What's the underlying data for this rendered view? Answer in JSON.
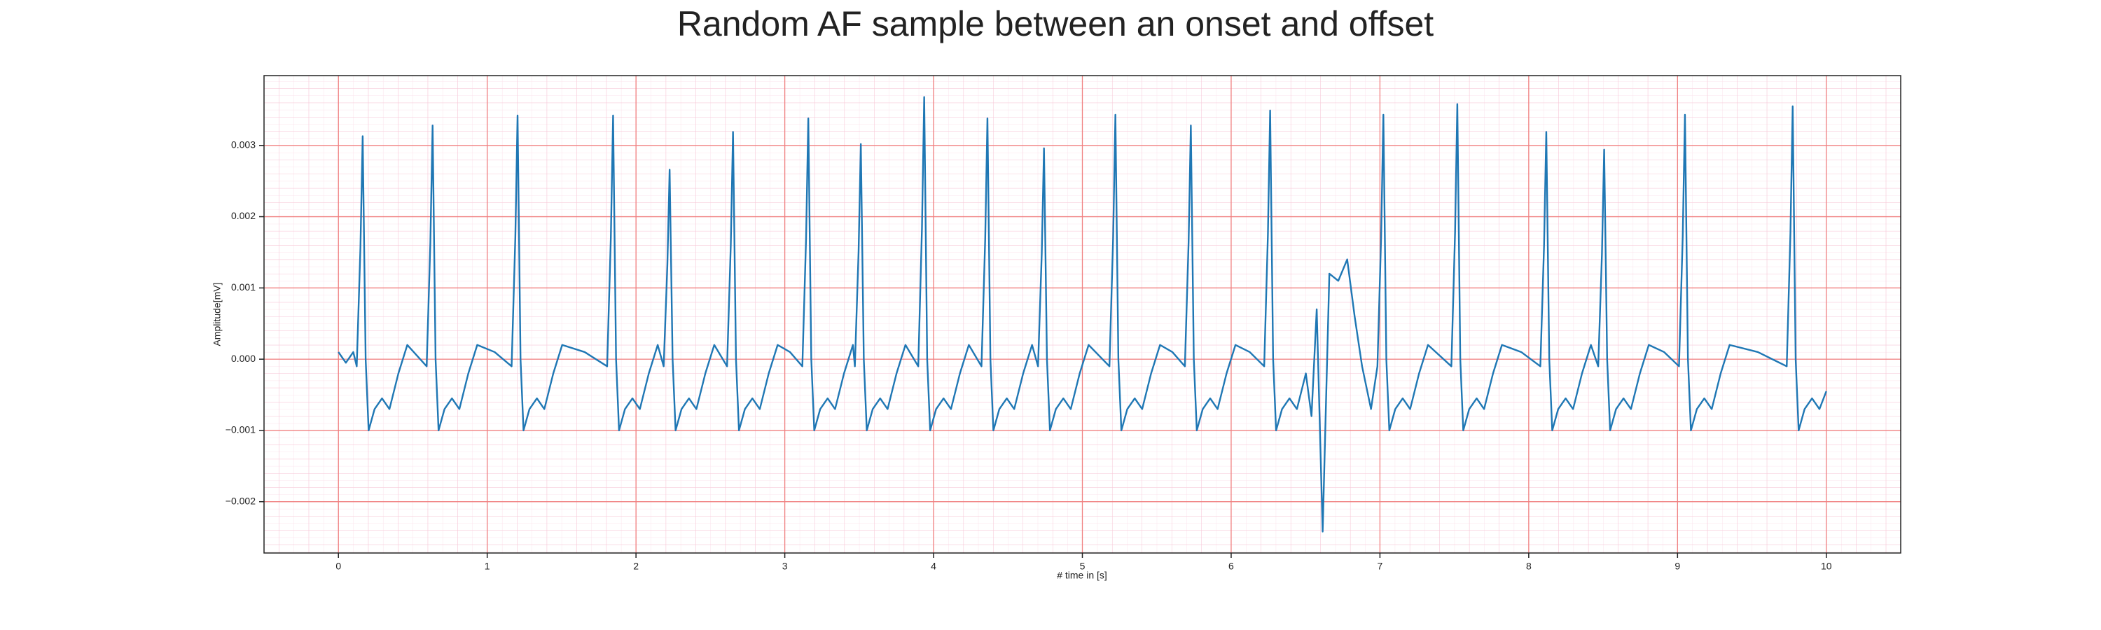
{
  "chart_data": {
    "type": "line",
    "title": "Random AF sample between an onset and offset",
    "xlabel": "# time in [s]",
    "ylabel": "Amplitude[mV]",
    "xlim": [
      -0.5,
      10.5
    ],
    "ylim": [
      -0.00272,
      0.00398
    ],
    "xticks": [
      0,
      1,
      2,
      3,
      4,
      5,
      6,
      7,
      8,
      9,
      10
    ],
    "yticks": [
      {
        "value": -0.002,
        "label": "−0.002"
      },
      {
        "value": -0.001,
        "label": "−0.001"
      },
      {
        "value": 0,
        "label": "0.000"
      },
      {
        "value": 0.001,
        "label": "0.001"
      },
      {
        "value": 0.002,
        "label": "0.002"
      },
      {
        "value": 0.003,
        "label": "0.003"
      }
    ],
    "grid": true,
    "minor_grid": true,
    "x": [
      0,
      0.05,
      0.1,
      0.123,
      0.148,
      0.163,
      0.183,
      0.203,
      0.243,
      0.293,
      0.343,
      0.403,
      0.463,
      0.593,
      0.618,
      0.633,
      0.653,
      0.673,
      0.713,
      0.763,
      0.813,
      0.873,
      0.933,
      1.05,
      1.164,
      1.189,
      1.204,
      1.224,
      1.244,
      1.284,
      1.334,
      1.384,
      1.444,
      1.504,
      1.655,
      1.806,
      1.831,
      1.846,
      1.866,
      1.886,
      1.926,
      1.976,
      2.026,
      2.086,
      2.146,
      2.186,
      2.211,
      2.226,
      2.246,
      2.266,
      2.306,
      2.356,
      2.406,
      2.466,
      2.526,
      2.612,
      2.637,
      2.652,
      2.672,
      2.692,
      2.732,
      2.782,
      2.832,
      2.892,
      2.952,
      3.035,
      3.118,
      3.143,
      3.158,
      3.178,
      3.198,
      3.238,
      3.288,
      3.338,
      3.398,
      3.458,
      3.471,
      3.496,
      3.511,
      3.531,
      3.551,
      3.591,
      3.641,
      3.691,
      3.751,
      3.811,
      3.897,
      3.922,
      3.937,
      3.957,
      3.977,
      4.017,
      4.067,
      4.117,
      4.177,
      4.237,
      4.322,
      4.347,
      4.362,
      4.382,
      4.402,
      4.442,
      4.492,
      4.542,
      4.602,
      4.662,
      4.702,
      4.727,
      4.742,
      4.762,
      4.782,
      4.822,
      4.872,
      4.922,
      4.982,
      5.042,
      5.182,
      5.207,
      5.222,
      5.242,
      5.262,
      5.302,
      5.352,
      5.402,
      5.462,
      5.522,
      5.605,
      5.689,
      5.714,
      5.729,
      5.749,
      5.769,
      5.809,
      5.859,
      5.909,
      5.969,
      6.029,
      6.125,
      6.222,
      6.247,
      6.262,
      6.282,
      6.302,
      6.342,
      6.392,
      6.442,
      6.502,
      6.54,
      6.575,
      6.615,
      6.66,
      6.72,
      6.78,
      6.83,
      6.88,
      6.94,
      6.983,
      7.008,
      7.023,
      7.043,
      7.063,
      7.103,
      7.153,
      7.203,
      7.263,
      7.323,
      7.48,
      7.505,
      7.52,
      7.54,
      7.56,
      7.6,
      7.65,
      7.7,
      7.76,
      7.82,
      7.95,
      8.078,
      8.103,
      8.118,
      8.138,
      8.158,
      8.198,
      8.248,
      8.298,
      8.358,
      8.418,
      8.467,
      8.492,
      8.507,
      8.527,
      8.547,
      8.587,
      8.637,
      8.687,
      8.747,
      8.807,
      8.91,
      9.01,
      9.035,
      9.05,
      9.07,
      9.09,
      9.13,
      9.18,
      9.23,
      9.29,
      9.35,
      9.54,
      9.734,
      9.759,
      9.774,
      9.794,
      9.814,
      9.854,
      9.904,
      9.954,
      10.0
    ],
    "series": [
      {
        "color": "#1f77b4",
        "values": [
          0.0001,
          -5e-05,
          0.0001,
          -0.0001,
          0.00157,
          0.00313,
          0,
          -0.001,
          -0.0007,
          -0.00055,
          -0.0007,
          -0.0002,
          0.0002,
          -0.0001,
          0.00164,
          0.00328,
          0,
          -0.001,
          -0.0007,
          -0.00055,
          -0.0007,
          -0.0002,
          0.0002,
          0.0001,
          -0.0001,
          0.00171,
          0.00342,
          0,
          -0.001,
          -0.0007,
          -0.00055,
          -0.0007,
          -0.0002,
          0.0002,
          0.0001,
          -0.0001,
          0.00171,
          0.00342,
          0,
          -0.001,
          -0.0007,
          -0.00055,
          -0.0007,
          -0.0002,
          0.0002,
          -0.0001,
          0.00133,
          0.00266,
          0,
          -0.001,
          -0.0007,
          -0.00055,
          -0.0007,
          -0.0002,
          0.0002,
          -0.0001,
          0.0016,
          0.00319,
          0,
          -0.001,
          -0.0007,
          -0.00055,
          -0.0007,
          -0.0002,
          0.0002,
          0.0001,
          -0.0001,
          0.00169,
          0.00338,
          0,
          -0.001,
          -0.0007,
          -0.00055,
          -0.0007,
          -0.0002,
          0.0002,
          -0.0001,
          0.00151,
          0.00302,
          0,
          -0.001,
          -0.0007,
          -0.00055,
          -0.0007,
          -0.0002,
          0.0002,
          -0.0001,
          0.00184,
          0.00368,
          0,
          -0.001,
          -0.0007,
          -0.00055,
          -0.0007,
          -0.0002,
          0.0002,
          -0.0001,
          0.00169,
          0.00338,
          0,
          -0.001,
          -0.0007,
          -0.00055,
          -0.0007,
          -0.0002,
          0.0002,
          -0.0001,
          0.00148,
          0.00296,
          0,
          -0.001,
          -0.0007,
          -0.00055,
          -0.0007,
          -0.0002,
          0.0002,
          -0.0001,
          0.00172,
          0.00343,
          0,
          -0.001,
          -0.0007,
          -0.00055,
          -0.0007,
          -0.0002,
          0.0002,
          0.0001,
          -0.0001,
          0.00164,
          0.00328,
          0,
          -0.001,
          -0.0007,
          -0.00055,
          -0.0007,
          -0.0002,
          0.0002,
          0.0001,
          -0.0001,
          0.00175,
          0.00349,
          0,
          -0.001,
          -0.0007,
          -0.00055,
          -0.0007,
          -0.0002,
          -0.0008,
          0.0007,
          -0.00242,
          0.0012,
          0.0011,
          0.0014,
          0.0006,
          -0.0001,
          -0.0007,
          -0.0001,
          0.00172,
          0.00343,
          0,
          -0.001,
          -0.0007,
          -0.00055,
          -0.0007,
          -0.0002,
          0.0002,
          -0.0001,
          0.00179,
          0.00358,
          0,
          -0.001,
          -0.0007,
          -0.00055,
          -0.0007,
          -0.0002,
          0.0002,
          0.0001,
          -0.0001,
          0.0016,
          0.00319,
          0,
          -0.001,
          -0.0007,
          -0.00055,
          -0.0007,
          -0.0002,
          0.0002,
          -0.0001,
          0.00147,
          0.00294,
          0,
          -0.001,
          -0.0007,
          -0.00055,
          -0.0007,
          -0.0002,
          0.0002,
          0.0001,
          -0.0001,
          0.00172,
          0.00343,
          0,
          -0.001,
          -0.0007,
          -0.00055,
          -0.0007,
          -0.0002,
          0.0002,
          0.0001,
          -0.0001,
          0.00178,
          0.00355,
          0,
          -0.001,
          -0.0007,
          -0.00055,
          -0.0007,
          -0.00045
        ]
      }
    ]
  }
}
